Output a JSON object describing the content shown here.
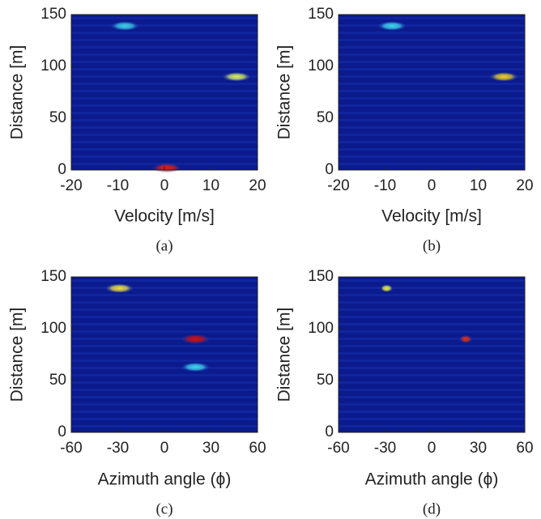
{
  "chart_data": [
    {
      "type": "heatmap",
      "x_label": "Velocity [m/s]",
      "y_label": "Distance [m]",
      "caption": "(a)",
      "xlim": [
        -20,
        20
      ],
      "ylim": [
        0,
        150
      ],
      "xticks": [
        -20,
        -10,
        0,
        10,
        20
      ],
      "yticks": [
        0,
        50,
        100,
        150
      ],
      "x": [
        -8.5,
        15.5,
        0.5
      ],
      "y": [
        139,
        90,
        2
      ],
      "colors": [
        "#3fd0e8",
        "#d8f060",
        "#e02010"
      ]
    },
    {
      "type": "heatmap",
      "x_label": "Velocity [m/s]",
      "y_label": "Distance [m]",
      "caption": "(b)",
      "xlim": [
        -20,
        20
      ],
      "ylim": [
        0,
        150
      ],
      "xticks": [
        -20,
        -10,
        0,
        10,
        20
      ],
      "yticks": [
        0,
        50,
        100,
        150
      ],
      "x": [
        -8.5,
        15.5
      ],
      "y": [
        139,
        90
      ],
      "colors": [
        "#40d8f0",
        "#f0d020"
      ]
    },
    {
      "type": "heatmap",
      "x_label": "Azimuth angle (ϕ)",
      "y_label": "Distance [m]",
      "caption": "(c)",
      "xlim": [
        -60,
        60
      ],
      "ylim": [
        0,
        150
      ],
      "xticks": [
        -60,
        -30,
        0,
        30,
        60
      ],
      "yticks": [
        0,
        50,
        100,
        150
      ],
      "x": [
        -29,
        20,
        20
      ],
      "y": [
        139,
        90,
        63
      ],
      "colors": [
        "#f0e040",
        "#d01010",
        "#40d8f0"
      ]
    },
    {
      "type": "heatmap",
      "x_label": "Azimuth angle (ϕ)",
      "y_label": "Distance [m]",
      "caption": "(d)",
      "xlim": [
        -60,
        60
      ],
      "ylim": [
        0,
        150
      ],
      "xticks": [
        -60,
        -30,
        0,
        30,
        60
      ],
      "yticks": [
        0,
        50,
        100,
        150
      ],
      "x": [
        -29,
        22
      ],
      "y": [
        139,
        90
      ],
      "colors": [
        "#e8f040",
        "#e03010"
      ]
    }
  ]
}
